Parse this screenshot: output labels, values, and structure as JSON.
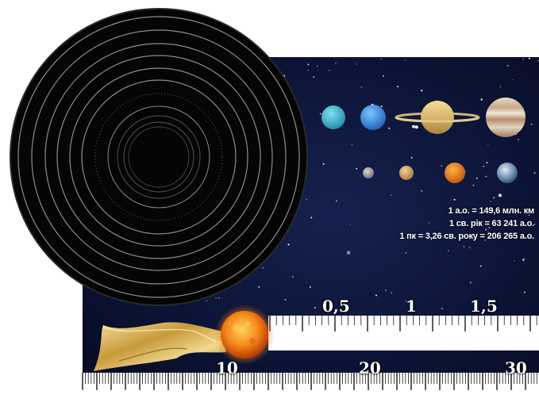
{
  "illustration": {
    "distance_facts": [
      "1 а.о. = 149,6 млн. км",
      "1 св. рік = 63 241 а.о.",
      "1 пк = 3,26 св. року = 206 265 а.о."
    ],
    "upper_ruler_labels": [
      "0,5",
      "1",
      "1,5"
    ],
    "lower_ruler_labels": [
      "10",
      "20",
      "30"
    ],
    "colors": {
      "space": "#0a0f2c",
      "sun": "#f08a1c",
      "ruler": "#ffffff",
      "ribbon": "#c9a24a"
    },
    "planets_top_row": [
      "uranus-icon",
      "neptune-icon",
      "saturn-icon",
      "jupiter-icon"
    ],
    "planets_bottom_row": [
      "mercury-icon",
      "mars-icon",
      "venus-icon",
      "earth-icon"
    ]
  }
}
